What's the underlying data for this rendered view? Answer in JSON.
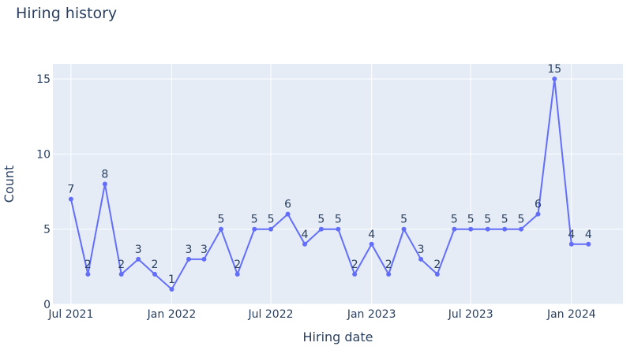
{
  "chart_data": {
    "type": "line",
    "title": "Hiring history",
    "xlabel": "Hiring date",
    "ylabel": "Count",
    "x_tick_labels": [
      "Jul 2021",
      "Jan 2022",
      "Jul 2022",
      "Jan 2023",
      "Jul 2023",
      "Jan 2024"
    ],
    "x_ticks": [
      "2021-07-01",
      "2022-01-01",
      "2022-07-01",
      "2023-01-01",
      "2023-07-01",
      "2024-01-01"
    ],
    "xlim": [
      "2021-05-29",
      "2024-04-04"
    ],
    "ylim": [
      0,
      16
    ],
    "y_ticks": [
      0,
      5,
      10,
      15
    ],
    "grid": true,
    "x": [
      "2021-07-01",
      "2021-08-01",
      "2021-09-01",
      "2021-10-01",
      "2021-11-01",
      "2021-12-01",
      "2022-01-01",
      "2022-02-01",
      "2022-03-01",
      "2022-04-01",
      "2022-05-01",
      "2022-06-01",
      "2022-07-01",
      "2022-08-01",
      "2022-09-01",
      "2022-10-01",
      "2022-11-01",
      "2022-12-01",
      "2023-01-01",
      "2023-02-01",
      "2023-03-01",
      "2023-04-01",
      "2023-05-01",
      "2023-06-01",
      "2023-07-01",
      "2023-08-01",
      "2023-09-01",
      "2023-10-01",
      "2023-11-01",
      "2023-12-01",
      "2024-01-01",
      "2024-02-01"
    ],
    "values": [
      7,
      2,
      8,
      2,
      3,
      2,
      1,
      3,
      3,
      5,
      2,
      5,
      5,
      6,
      4,
      5,
      5,
      2,
      4,
      2,
      5,
      3,
      2,
      5,
      5,
      5,
      5,
      5,
      6,
      15,
      4,
      4
    ],
    "colors": {
      "line": "#636efa",
      "plot_bg": "#e5ecf6",
      "grid": "#ffffff",
      "text": "#2a3f5f"
    }
  }
}
